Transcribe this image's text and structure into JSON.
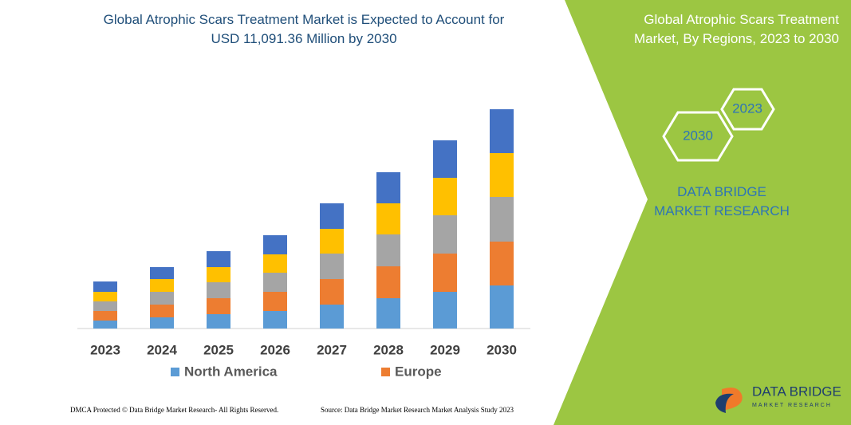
{
  "chart_data": {
    "type": "stacked_bar",
    "title": "Global Atrophic Scars Treatment Market is Expected to Account for USD 11,091.36 Million by 2030",
    "categories": [
      "2023",
      "2024",
      "2025",
      "2026",
      "2027",
      "2028",
      "2029",
      "2030"
    ],
    "series": [
      {
        "name": "North America",
        "color": "#5b9bd5",
        "values": [
          10,
          14,
          18,
          22,
          30,
          38,
          46,
          54
        ]
      },
      {
        "name": "Europe",
        "color": "#ed7d31",
        "values": [
          12,
          16,
          20,
          24,
          32,
          40,
          48,
          55
        ]
      },
      {
        "color": "#a5a5a5",
        "values": [
          12,
          16,
          20,
          24,
          32,
          40,
          48,
          56
        ]
      },
      {
        "color": "#ffc000",
        "values": [
          12,
          16,
          19,
          23,
          31,
          39,
          47,
          55
        ]
      },
      {
        "color": "#4472c4",
        "values": [
          13,
          15,
          20,
          24,
          32,
          39,
          47,
          55
        ]
      }
    ]
  },
  "sidebar": {
    "title": "Global Atrophic Scars Treatment Market, By Regions, 2023 to 2030",
    "hexagons": [
      "2023",
      "2030"
    ],
    "brand": "DATA BRIDGE MARKET RESEARCH"
  },
  "logo": {
    "name": "DATA BRIDGE",
    "tagline": "MARKET RESEARCH"
  },
  "footer": {
    "copyright": "DMCA Protected © Data Bridge Market Research-  All Rights Reserved.",
    "source": "Source: Data Bridge Market Research  Market Analysis Study 2023"
  }
}
